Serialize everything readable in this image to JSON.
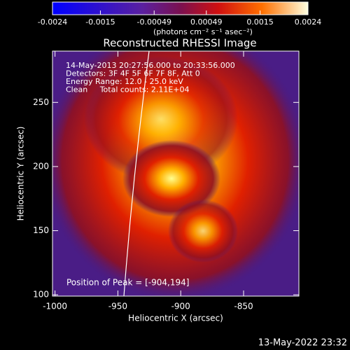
{
  "chart_data": {
    "type": "image",
    "title": "Reconstructed RHESSI Image",
    "xlabel": "Heliocentric X (arcsec)",
    "ylabel": "Heliocentric Y (arcsec)",
    "xlim": [
      -1002,
      -806
    ],
    "xticks": [
      -1000,
      -950,
      -900,
      -850
    ],
    "ylim": [
      99,
      290
    ],
    "yticks": [
      100,
      150,
      200,
      250
    ],
    "annotations": [
      "14-May-2013 20:27:56.000 to 20:33:56.000",
      "Detectors: 3F 4F 5F 6F 7F 8F, Att 0",
      "Energy Range: 12.0 - 25.0 keV",
      "Clean     Total counts: 2.11E+04"
    ],
    "peak_label": "Position of Peak = [-904,194]",
    "colorbar": {
      "lim": [
        -0.0024,
        0.0024
      ],
      "ticks": [
        -0.0024,
        -0.0015,
        -0.00049,
        0.00049,
        0.0015,
        0.0024
      ],
      "label": "(photons cm⁻² s⁻¹ asec⁻²)"
    },
    "timestamp": "13-May-2022 23:32"
  }
}
